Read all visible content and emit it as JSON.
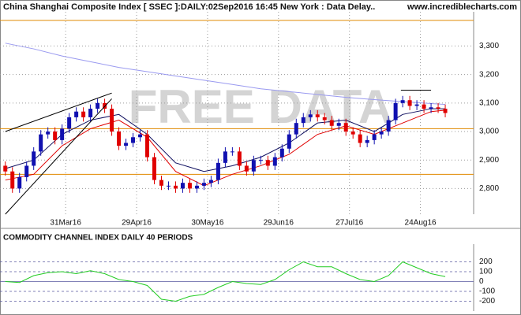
{
  "chart_data": [
    {
      "type": "candlestick",
      "title": "China Shanghai Composite Index [ SSEC ]:DAILY:02Sep2016 16:45 New York : Data Delay..",
      "source": "www.incrediblecharts.com",
      "watermark": "FREE DATA",
      "up_color": "#1010b0",
      "down_color": "#e00000",
      "xlim": [
        1.5,
        135
      ],
      "xticks": [
        {
          "value": 20,
          "label": "31Mar16"
        },
        {
          "value": 40,
          "label": "29Apr16"
        },
        {
          "value": 60,
          "label": "30May16"
        },
        {
          "value": 80,
          "label": "29Jun16"
        },
        {
          "value": 100,
          "label": "27Jul16"
        },
        {
          "value": 120,
          "label": "24Aug16"
        }
      ],
      "ylim": [
        2710,
        3420
      ],
      "yticks": [
        {
          "value": 2800,
          "label": "2,800"
        },
        {
          "value": 2900,
          "label": "2,900"
        },
        {
          "value": 3000,
          "label": "3,000"
        },
        {
          "value": 3100,
          "label": "3,100"
        },
        {
          "value": 3200,
          "label": "3,200"
        },
        {
          "value": 3300,
          "label": "3,300"
        }
      ],
      "grid": true,
      "x": [
        3,
        5,
        7,
        9,
        11,
        13,
        15,
        17,
        19,
        21,
        23,
        25,
        27,
        29,
        31,
        33,
        35,
        37,
        39,
        41,
        43,
        45,
        47,
        49,
        51,
        53,
        55,
        57,
        59,
        61,
        63,
        65,
        67,
        69,
        71,
        73,
        75,
        77,
        79,
        81,
        83,
        85,
        87,
        89,
        91,
        93,
        95,
        97,
        99,
        101,
        103,
        105,
        107,
        109,
        111,
        113,
        115,
        117,
        119,
        121,
        123,
        125,
        127
      ],
      "open": [
        2880,
        2860,
        2800,
        2840,
        2880,
        2930,
        2990,
        3000,
        2970,
        3010,
        3050,
        3070,
        3050,
        3080,
        3100,
        3080,
        3000,
        2950,
        2960,
        2980,
        2990,
        2910,
        2830,
        2810,
        2810,
        2800,
        2820,
        2800,
        2810,
        2820,
        2830,
        2890,
        2930,
        2930,
        2880,
        2860,
        2900,
        2900,
        2880,
        2910,
        2940,
        2990,
        3030,
        3050,
        3060,
        3050,
        3040,
        3020,
        3030,
        3000,
        2990,
        2960,
        2970,
        2990,
        3000,
        3040,
        3100,
        3110,
        3090,
        3095,
        3080,
        3085,
        3080
      ],
      "high": [
        2895,
        2875,
        2855,
        2895,
        2945,
        3005,
        3015,
        3015,
        3025,
        3065,
        3085,
        3085,
        3095,
        3115,
        3115,
        3095,
        3015,
        2975,
        2995,
        3005,
        3005,
        2925,
        2845,
        2825,
        2825,
        2835,
        2835,
        2825,
        2835,
        2845,
        2905,
        2945,
        2945,
        2945,
        2895,
        2915,
        2915,
        2915,
        2925,
        2955,
        3005,
        3045,
        3065,
        3075,
        3075,
        3065,
        3055,
        3045,
        3045,
        3015,
        3005,
        2985,
        3005,
        3015,
        3055,
        3115,
        3125,
        3125,
        3110,
        3110,
        3100,
        3100,
        3095
      ],
      "low": [
        2845,
        2785,
        2785,
        2825,
        2865,
        2915,
        2975,
        2955,
        2955,
        2995,
        3035,
        3035,
        3035,
        3065,
        3065,
        2985,
        2935,
        2935,
        2945,
        2965,
        2895,
        2815,
        2795,
        2795,
        2785,
        2785,
        2785,
        2785,
        2795,
        2805,
        2815,
        2875,
        2915,
        2865,
        2845,
        2845,
        2885,
        2865,
        2865,
        2895,
        2925,
        2975,
        3015,
        3035,
        3035,
        3025,
        3005,
        3005,
        2985,
        2975,
        2945,
        2945,
        2955,
        2975,
        2985,
        3025,
        3085,
        3075,
        3075,
        3065,
        3065,
        3065,
        3050
      ],
      "close": [
        2860,
        2800,
        2840,
        2880,
        2930,
        2990,
        3000,
        2970,
        3010,
        3050,
        3070,
        3050,
        3080,
        3100,
        3080,
        3000,
        2950,
        2960,
        2980,
        2990,
        2910,
        2830,
        2810,
        2810,
        2800,
        2820,
        2800,
        2810,
        2820,
        2830,
        2890,
        2930,
        2930,
        2880,
        2860,
        2900,
        2900,
        2880,
        2910,
        2940,
        2990,
        3030,
        3050,
        3060,
        3050,
        3040,
        3020,
        3030,
        3000,
        2990,
        2960,
        2970,
        2990,
        3000,
        3040,
        3100,
        3110,
        3090,
        3095,
        3080,
        3085,
        3080,
        3065
      ],
      "line_x": [
        3,
        11,
        19,
        27,
        35,
        43,
        51,
        59,
        67,
        75,
        83,
        91,
        99,
        107,
        115,
        123,
        127
      ],
      "lines": [
        {
          "color": "#9a9af0",
          "values": [
            3310,
            3290,
            3265,
            3245,
            3225,
            3210,
            3195,
            3180,
            3165,
            3150,
            3140,
            3130,
            3120,
            3112,
            3105,
            3098,
            3095
          ]
        },
        {
          "color": "#101060",
          "values": [
            2870,
            2900,
            2990,
            3040,
            3060,
            2990,
            2890,
            2860,
            2880,
            2910,
            2960,
            3030,
            3040,
            3000,
            3060,
            3080,
            3080
          ]
        },
        {
          "color": "#e00000",
          "values": [
            2830,
            2850,
            2950,
            3010,
            3040,
            2980,
            2860,
            2810,
            2850,
            2880,
            2920,
            2990,
            3020,
            2990,
            3030,
            3070,
            3075
          ]
        }
      ],
      "hlines": {
        "color": "#e08a00",
        "values": [
          3390,
          3010,
          2850
        ]
      },
      "trendlines": [
        {
          "x": [
            3,
            33
          ],
          "y": [
            3000,
            3135
          ]
        },
        {
          "x": [
            3,
            33
          ],
          "y": [
            2710,
            3115
          ]
        },
        {
          "x": [
            114.5,
            123
          ],
          "y": [
            3145,
            3145
          ]
        }
      ]
    },
    {
      "type": "line",
      "title": "COMMODITY CHANNEL INDEX DAILY 40 PERIODS",
      "color": "#22cc22",
      "xlim": [
        1.5,
        135
      ],
      "ylim": [
        -300,
        380
      ],
      "yticks": [
        -200,
        -100,
        0,
        100,
        200
      ],
      "x": [
        3,
        7,
        11,
        15,
        19,
        23,
        27,
        31,
        35,
        39,
        43,
        47,
        51,
        55,
        59,
        63,
        67,
        71,
        75,
        79,
        83,
        87,
        91,
        95,
        99,
        103,
        107,
        111,
        115,
        119,
        123,
        127
      ],
      "values": [
        0,
        -10,
        60,
        90,
        100,
        80,
        110,
        80,
        20,
        0,
        -40,
        -180,
        -200,
        -150,
        -130,
        -60,
        0,
        -20,
        -30,
        20,
        120,
        200,
        150,
        150,
        80,
        20,
        0,
        60,
        200,
        140,
        80,
        50
      ]
    }
  ]
}
